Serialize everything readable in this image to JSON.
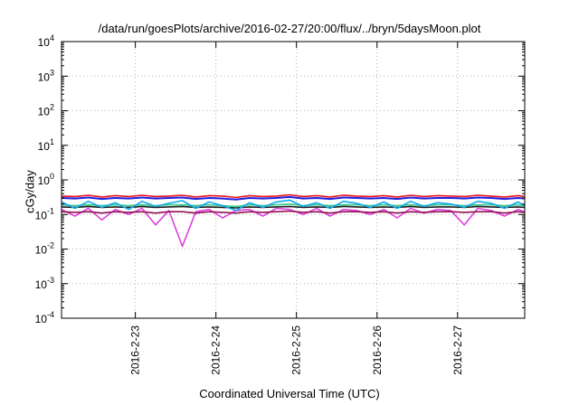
{
  "chart_data": {
    "type": "line",
    "title": "/data/run/goesPlots/archive/2016-02-27/20:00/flux/../bryn/5daysMoon.plot",
    "xlabel": "Coordinated Universal Time (UTC)",
    "ylabel": "cGy/day",
    "yscale": "log",
    "ylim": [
      0.0001,
      10000
    ],
    "xlim": [
      "2016-02-22T02:00",
      "2016-02-27T20:00"
    ],
    "x_ticks": [
      "2016-2-23",
      "2016-2-24",
      "2016-2-25",
      "2016-2-26",
      "2016-2-27"
    ],
    "y_ticks": [
      {
        "base": "10",
        "exp": "-4"
      },
      {
        "base": "10",
        "exp": "-3"
      },
      {
        "base": "10",
        "exp": "-2"
      },
      {
        "base": "10",
        "exp": "-1"
      },
      {
        "base": "10",
        "exp": "0"
      },
      {
        "base": "10",
        "exp": "1"
      },
      {
        "base": "10",
        "exp": "2"
      },
      {
        "base": "10",
        "exp": "3"
      },
      {
        "base": "10",
        "exp": "4"
      }
    ],
    "grid": true,
    "legend": "none",
    "x": [
      "2016-02-22T02:00",
      "2016-02-22T06:00",
      "2016-02-22T10:00",
      "2016-02-22T14:00",
      "2016-02-22T18:00",
      "2016-02-22T22:00",
      "2016-02-23T02:00",
      "2016-02-23T06:00",
      "2016-02-23T10:00",
      "2016-02-23T14:00",
      "2016-02-23T18:00",
      "2016-02-23T22:00",
      "2016-02-24T02:00",
      "2016-02-24T06:00",
      "2016-02-24T10:00",
      "2016-02-24T14:00",
      "2016-02-24T18:00",
      "2016-02-24T22:00",
      "2016-02-25T02:00",
      "2016-02-25T06:00",
      "2016-02-25T10:00",
      "2016-02-25T14:00",
      "2016-02-25T18:00",
      "2016-02-25T22:00",
      "2016-02-26T02:00",
      "2016-02-26T06:00",
      "2016-02-26T10:00",
      "2016-02-26T14:00",
      "2016-02-26T18:00",
      "2016-02-26T22:00",
      "2016-02-27T02:00",
      "2016-02-27T06:00",
      "2016-02-27T10:00",
      "2016-02-27T14:00",
      "2016-02-27T18:00",
      "2016-02-27T20:00"
    ],
    "series": [
      {
        "color": "#e8101c",
        "values": [
          0.34,
          0.33,
          0.36,
          0.32,
          0.35,
          0.33,
          0.36,
          0.33,
          0.34,
          0.36,
          0.32,
          0.35,
          0.34,
          0.31,
          0.35,
          0.33,
          0.34,
          0.37,
          0.33,
          0.35,
          0.32,
          0.36,
          0.34,
          0.33,
          0.35,
          0.32,
          0.36,
          0.33,
          0.35,
          0.34,
          0.33,
          0.36,
          0.34,
          0.32,
          0.35,
          0.33
        ]
      },
      {
        "color": "#2020e0",
        "values": [
          0.3,
          0.29,
          0.31,
          0.28,
          0.3,
          0.29,
          0.31,
          0.29,
          0.3,
          0.31,
          0.28,
          0.3,
          0.29,
          0.27,
          0.3,
          0.29,
          0.3,
          0.32,
          0.29,
          0.3,
          0.28,
          0.31,
          0.3,
          0.29,
          0.3,
          0.28,
          0.31,
          0.29,
          0.3,
          0.3,
          0.29,
          0.31,
          0.3,
          0.28,
          0.3,
          0.29
        ]
      },
      {
        "color": "#10a8e8",
        "values": [
          0.23,
          0.15,
          0.24,
          0.16,
          0.22,
          0.14,
          0.24,
          0.17,
          0.21,
          0.25,
          0.15,
          0.23,
          0.18,
          0.13,
          0.22,
          0.16,
          0.23,
          0.26,
          0.17,
          0.22,
          0.15,
          0.24,
          0.21,
          0.16,
          0.23,
          0.15,
          0.24,
          0.17,
          0.22,
          0.2,
          0.16,
          0.24,
          0.21,
          0.15,
          0.23,
          0.18
        ]
      },
      {
        "color": "#30c888",
        "values": [
          0.19,
          0.18,
          0.19,
          0.18,
          0.19,
          0.18,
          0.19,
          0.18,
          0.19,
          0.19,
          0.18,
          0.19,
          0.18,
          0.17,
          0.19,
          0.18,
          0.19,
          0.2,
          0.18,
          0.19,
          0.18,
          0.19,
          0.19,
          0.18,
          0.19,
          0.18,
          0.19,
          0.18,
          0.19,
          0.19,
          0.18,
          0.19,
          0.19,
          0.18,
          0.19,
          0.18
        ]
      },
      {
        "color": "#202020",
        "values": [
          0.165,
          0.16,
          0.17,
          0.16,
          0.165,
          0.16,
          0.17,
          0.16,
          0.165,
          0.17,
          0.16,
          0.165,
          0.16,
          0.155,
          0.165,
          0.16,
          0.165,
          0.17,
          0.16,
          0.165,
          0.16,
          0.17,
          0.165,
          0.16,
          0.165,
          0.16,
          0.17,
          0.16,
          0.165,
          0.165,
          0.16,
          0.17,
          0.165,
          0.16,
          0.165,
          0.16
        ]
      },
      {
        "color": "#e040e0",
        "values": [
          0.14,
          0.09,
          0.15,
          0.07,
          0.14,
          0.1,
          0.15,
          0.05,
          0.13,
          0.012,
          0.12,
          0.14,
          0.08,
          0.13,
          0.14,
          0.09,
          0.15,
          0.14,
          0.1,
          0.15,
          0.09,
          0.14,
          0.13,
          0.1,
          0.14,
          0.08,
          0.15,
          0.11,
          0.14,
          0.13,
          0.05,
          0.15,
          0.13,
          0.09,
          0.14,
          0.12
        ]
      },
      {
        "color": "#901050",
        "values": [
          0.12,
          0.115,
          0.12,
          0.11,
          0.12,
          0.115,
          0.12,
          0.11,
          0.12,
          0.12,
          0.11,
          0.12,
          0.115,
          0.11,
          0.12,
          0.115,
          0.12,
          0.125,
          0.115,
          0.12,
          0.11,
          0.12,
          0.12,
          0.115,
          0.12,
          0.11,
          0.12,
          0.115,
          0.12,
          0.12,
          0.115,
          0.12,
          0.12,
          0.11,
          0.12,
          0.115
        ]
      }
    ]
  }
}
